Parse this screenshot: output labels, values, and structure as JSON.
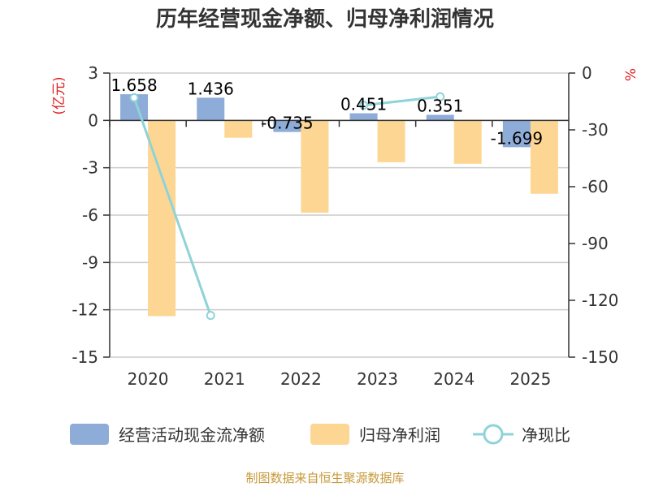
{
  "chart_data": {
    "type": "bar",
    "title": "历年经营现金净额、归母净利润情况",
    "categories": [
      "2020",
      "2021",
      "2022",
      "2023",
      "2024",
      "2025"
    ],
    "series": [
      {
        "name": "经营活动现金流净额",
        "type": "bar",
        "axis": "left",
        "values": [
          1.658,
          1.436,
          -0.735,
          0.451,
          0.351,
          -1.699
        ],
        "labels": [
          "1.658",
          "1.436",
          "-0.735",
          "0.451",
          "0.351",
          "-1.699"
        ],
        "color": "#8eacd8"
      },
      {
        "name": "归母净利润",
        "type": "bar",
        "axis": "left",
        "values": [
          -12.4,
          -1.1,
          -5.85,
          -2.65,
          -2.75,
          -4.65
        ],
        "color": "#fdd693"
      },
      {
        "name": "净现比",
        "type": "line",
        "axis": "right",
        "values": [
          -13,
          -128,
          null,
          -17,
          -12.5,
          null
        ],
        "color": "#8fd3d8"
      }
    ],
    "y_left": {
      "label": "(亿元)",
      "min": -15,
      "max": 3,
      "ticks": [
        3,
        0,
        -3,
        -6,
        -9,
        -12,
        -15
      ]
    },
    "y_right": {
      "label": "%",
      "min": -150,
      "max": 0,
      "ticks": [
        0,
        -30,
        -60,
        -90,
        -120,
        -150
      ]
    },
    "grid": true,
    "legend_position": "bottom",
    "source": "制图数据来自恒生聚源数据库"
  }
}
